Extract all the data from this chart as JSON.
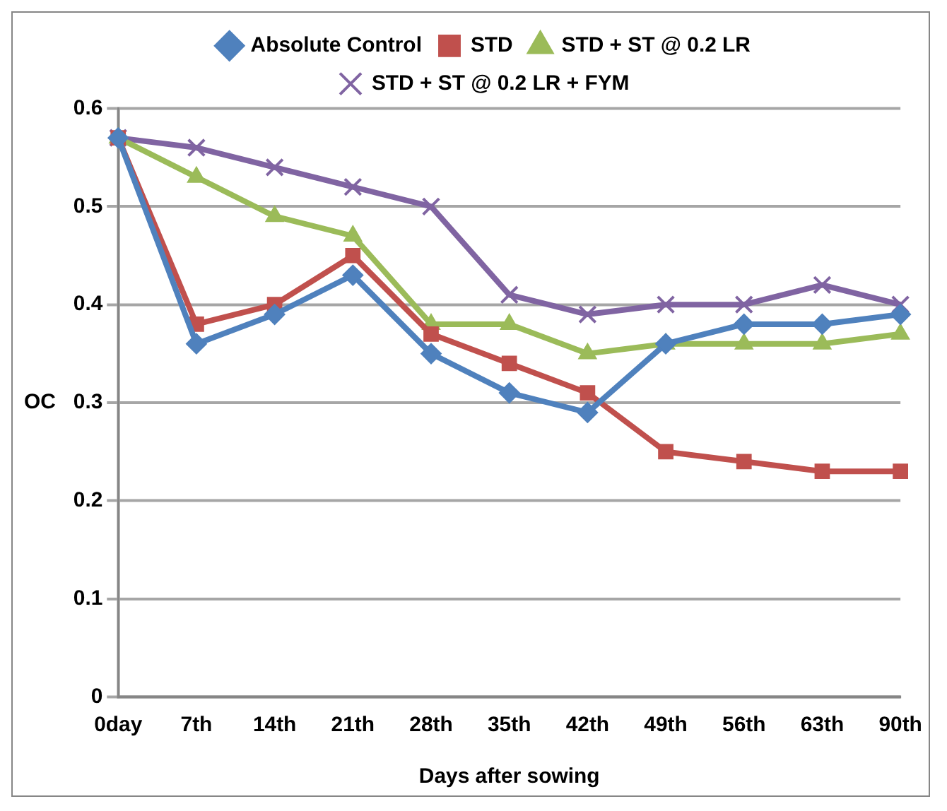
{
  "chart_data": {
    "type": "line",
    "xlabel": "Days after sowing",
    "ylabel": "OC",
    "categories": [
      "0day",
      "7th",
      "14th",
      "21th",
      "28th",
      "35th",
      "42th",
      "49th",
      "56th",
      "63th",
      "90th"
    ],
    "series": [
      {
        "name": "Absolute Control",
        "color": "#4f81bd",
        "marker": "diamond",
        "values": [
          0.57,
          0.36,
          0.39,
          0.43,
          0.35,
          0.31,
          0.29,
          0.36,
          0.38,
          0.38,
          0.39
        ]
      },
      {
        "name": "STD",
        "color": "#c0504d",
        "marker": "square",
        "values": [
          0.57,
          0.38,
          0.4,
          0.45,
          0.37,
          0.34,
          0.31,
          0.25,
          0.24,
          0.23,
          0.23
        ]
      },
      {
        "name": "STD + ST @ 0.2 LR",
        "color": "#9bbb59",
        "marker": "triangle",
        "values": [
          0.57,
          0.53,
          0.49,
          0.47,
          0.38,
          0.38,
          0.35,
          0.36,
          0.36,
          0.36,
          0.37
        ]
      },
      {
        "name": "STD + ST @ 0.2 LR + FYM",
        "color": "#8064a2",
        "marker": "cross",
        "values": [
          0.57,
          0.56,
          0.54,
          0.52,
          0.5,
          0.41,
          0.39,
          0.4,
          0.4,
          0.42,
          0.4
        ]
      }
    ],
    "ylim": [
      0,
      0.6
    ],
    "yticks": [
      0,
      0.1,
      0.2,
      0.3,
      0.4,
      0.5,
      0.6
    ],
    "grid": "y",
    "legend": "top",
    "line_style": "solid"
  }
}
